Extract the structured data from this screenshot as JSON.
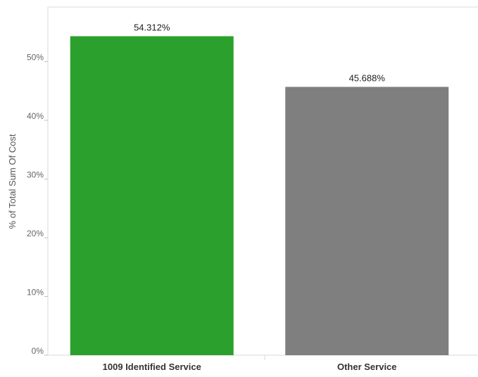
{
  "chart_data": {
    "type": "bar",
    "title": "",
    "xlabel": "",
    "ylabel": "% of Total Sum Of Cost",
    "ylim": [
      0,
      57.5
    ],
    "yticks": [
      0,
      10,
      20,
      30,
      40,
      50
    ],
    "ytick_labels": [
      "0%",
      "10%",
      "20%",
      "30%",
      "40%",
      "50%"
    ],
    "categories": [
      "1009 Identified Service",
      "Other Service"
    ],
    "values": [
      54.312,
      45.688
    ],
    "value_labels": [
      "54.312%",
      "45.688%"
    ],
    "colors": [
      "#2ca02c",
      "#7f7f7f"
    ],
    "grid": false,
    "legend": "none"
  }
}
